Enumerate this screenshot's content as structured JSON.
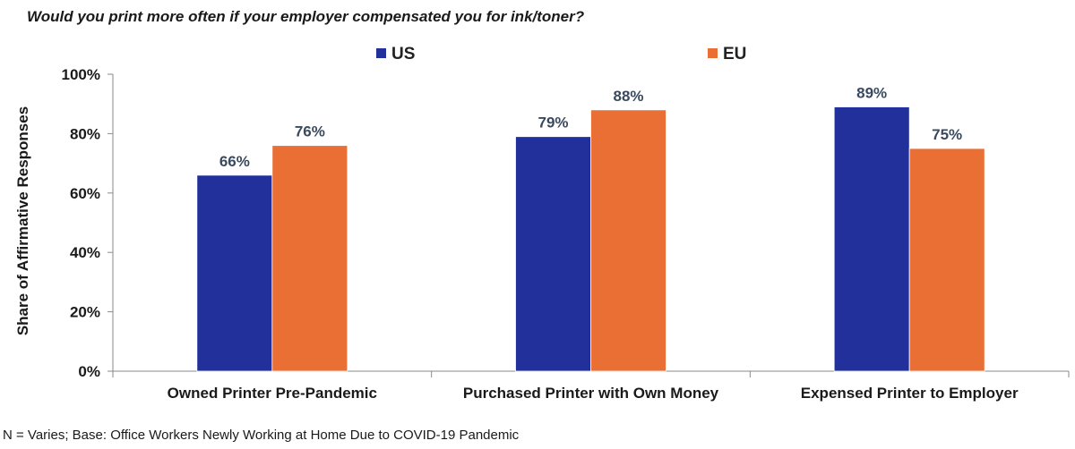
{
  "chart_data": {
    "type": "bar",
    "title": "Would you print more often if your employer compensated you for ink/toner?",
    "ylabel": "Share of Affirmative Responses",
    "xlabel": "",
    "ylim": [
      0,
      100
    ],
    "yticks": [
      0,
      20,
      40,
      60,
      80,
      100
    ],
    "ytick_labels": [
      "0%",
      "20%",
      "40%",
      "60%",
      "80%",
      "100%"
    ],
    "categories": [
      "Owned Printer Pre-Pandemic",
      "Purchased Printer with Own Money",
      "Expensed Printer to Employer"
    ],
    "series": [
      {
        "name": "US",
        "color": "#21309a",
        "values": [
          66,
          79,
          89
        ],
        "labels": [
          "66%",
          "79%",
          "89%"
        ]
      },
      {
        "name": "EU",
        "color": "#ea6f35",
        "values": [
          76,
          88,
          75
        ],
        "labels": [
          "76%",
          "88%",
          "75%"
        ]
      }
    ],
    "legend_position": "top",
    "grid": false,
    "footnote": "N = Varies; Base: Office Workers Newly Working at Home Due to COVID-19 Pandemic"
  }
}
